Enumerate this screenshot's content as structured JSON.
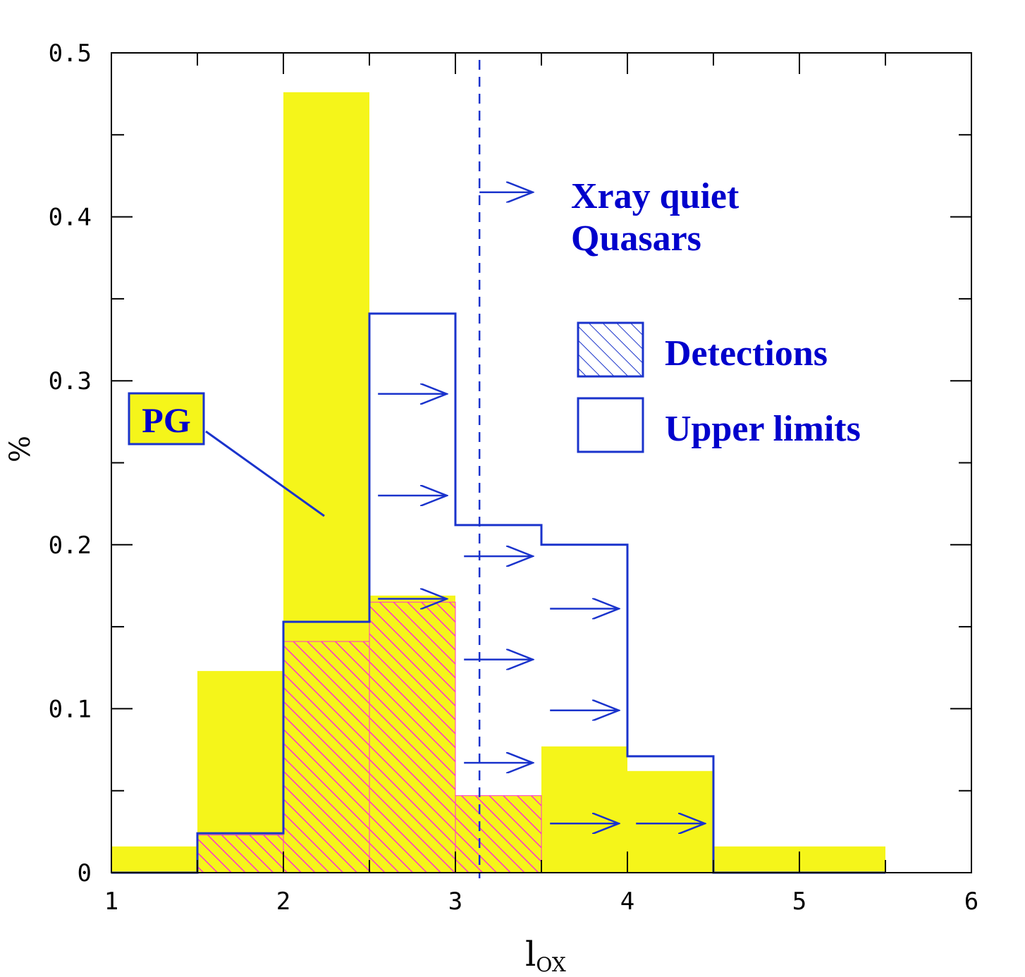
{
  "chart_data": {
    "type": "bar",
    "title": "",
    "xlabel": "l_ox",
    "xlabel_main": "l",
    "xlabel_sub": "OX",
    "ylabel": "%",
    "xlim": [
      1,
      6
    ],
    "ylim": [
      0,
      0.5
    ],
    "x_ticks": [
      1,
      2,
      3,
      4,
      5,
      6
    ],
    "x_tick_labels": [
      "1",
      "2",
      "3",
      "4",
      "5",
      "6"
    ],
    "y_ticks": [
      0,
      0.1,
      0.2,
      0.3,
      0.4,
      0.5
    ],
    "y_tick_labels": [
      "0",
      "0.1",
      "0.2",
      "0.3",
      "0.4",
      "0.5"
    ],
    "bin_edges": [
      1,
      1.5,
      2,
      2.5,
      3,
      3.5,
      4,
      4.5,
      5,
      5.5
    ],
    "series": [
      {
        "name": "PG",
        "style": "filled",
        "color": "#f5f51a",
        "values": [
          0.016,
          0.123,
          0.476,
          0.169,
          0.047,
          0.077,
          0.062,
          0.016,
          0.016
        ]
      },
      {
        "name": "Detections",
        "style": "hatched",
        "color": "#ff33cc",
        "values": [
          0,
          0.023,
          0.141,
          0.165,
          0.047,
          0,
          0,
          0,
          0
        ]
      },
      {
        "name": "Upper limits",
        "style": "outline",
        "color": "#1a33cc",
        "values": [
          0,
          0.024,
          0.153,
          0.341,
          0.212,
          0.2,
          0.071,
          0,
          0
        ]
      }
    ],
    "threshold_line": {
      "x": 3.14,
      "style": "dashed",
      "color": "#1a33cc"
    },
    "upper_limit_arrows": [
      {
        "x_from": 2.55,
        "x_to": 2.95,
        "y": 0.292
      },
      {
        "x_from": 2.55,
        "x_to": 2.95,
        "y": 0.23
      },
      {
        "x_from": 2.55,
        "x_to": 2.95,
        "y": 0.167
      },
      {
        "x_from": 3.05,
        "x_to": 3.45,
        "y": 0.193
      },
      {
        "x_from": 3.05,
        "x_to": 3.45,
        "y": 0.13
      },
      {
        "x_from": 3.05,
        "x_to": 3.45,
        "y": 0.067
      },
      {
        "x_from": 3.55,
        "x_to": 3.95,
        "y": 0.161
      },
      {
        "x_from": 3.55,
        "x_to": 3.95,
        "y": 0.099
      },
      {
        "x_from": 3.55,
        "x_to": 3.95,
        "y": 0.03
      },
      {
        "x_from": 4.05,
        "x_to": 4.45,
        "y": 0.03
      },
      {
        "x_from": 3.14,
        "x_to": 3.45,
        "y": 0.415
      }
    ],
    "annotations": {
      "xray_quiet_line1": "Xray quiet",
      "xray_quiet_line2": "Quasars",
      "pg_label": "PG"
    },
    "legend": {
      "position": "right",
      "entries": [
        "Detections",
        "Upper limits"
      ]
    },
    "grid": false
  },
  "colors": {
    "pg_fill": "#f5f51a",
    "hatch": "#ff33cc",
    "outline": "#1a33cc",
    "text_blue": "#0000cc",
    "axis": "#000000"
  }
}
